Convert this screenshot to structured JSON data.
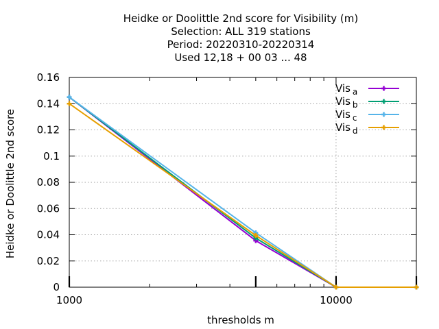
{
  "chart_data": {
    "type": "line",
    "title_lines": [
      "Heidke or Doolittle 2nd score  for Visibility (m)",
      "Selection: ALL     319 stations",
      "Period: 20220310-20220314",
      "Used  12,18 + 00 03 ... 48"
    ],
    "xlabel": "thresholds m",
    "ylabel": "Heidke or Doolittle 2nd score",
    "x_scale": "log",
    "xlim": [
      1000,
      20000
    ],
    "ylim": [
      0,
      0.16
    ],
    "x_tick_labels": [
      "1000",
      "10000"
    ],
    "y_tick_labels": [
      "0",
      "0.02",
      "0.04",
      "0.06",
      "0.08",
      "0.1",
      "0.12",
      "0.14",
      "0.16"
    ],
    "grid": true,
    "legend_position": "top-right",
    "x": [
      1000,
      5000,
      10000,
      20000
    ],
    "series": [
      {
        "name": "Vis",
        "subscript": "a",
        "color": "#9400d3",
        "values": [
          0.145,
          0.0355,
          0.0,
          0.0
        ]
      },
      {
        "name": "Vis",
        "subscript": "b",
        "color": "#009e73",
        "values": [
          0.145,
          0.0375,
          0.0,
          0.0
        ]
      },
      {
        "name": "Vis",
        "subscript": "c",
        "color": "#56b4e9",
        "values": [
          0.145,
          0.0415,
          0.0,
          0.0
        ]
      },
      {
        "name": "Vis",
        "subscript": "d",
        "color": "#e69f00",
        "values": [
          0.14,
          0.0395,
          0.0,
          0.0
        ]
      }
    ]
  }
}
